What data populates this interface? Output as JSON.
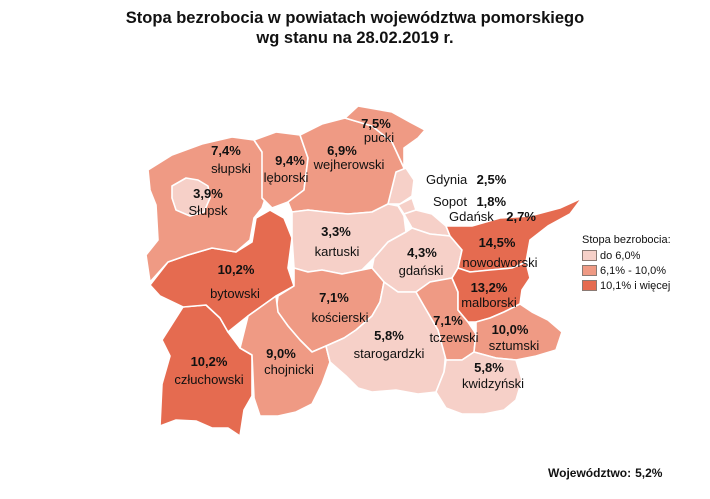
{
  "title_line1": "Stopa bezrobocia w powiatach województwa pomorskiego",
  "title_line2": "wg stanu na 28.02.2019 r.",
  "legend": {
    "title": "Stopa bezrobocia:",
    "items": [
      {
        "label": "do 6,0%",
        "color": "#f6d0c8"
      },
      {
        "label": "6,1% - 10,0%",
        "color": "#ef9a84"
      },
      {
        "label": "10,1% i więcej",
        "color": "#e56b50"
      }
    ]
  },
  "summary": {
    "label": "Województwo:",
    "value": "5,2%"
  },
  "regions": [
    {
      "id": "pucki",
      "name": "pucki",
      "value": "7,5%",
      "category": 1
    },
    {
      "id": "slupski",
      "name": "słupski",
      "value": "7,4%",
      "category": 1
    },
    {
      "id": "leborski",
      "name": "lęborski",
      "value": "9,4%",
      "category": 1
    },
    {
      "id": "wejherowski",
      "name": "wejherowski",
      "value": "6,9%",
      "category": 1
    },
    {
      "id": "slupsk",
      "name": "Słupsk",
      "value": "3,9%",
      "category": 0
    },
    {
      "id": "gdynia",
      "name": "Gdynia",
      "value": "2,5%",
      "category": 0
    },
    {
      "id": "sopot",
      "name": "Sopot",
      "value": "1,8%",
      "category": 0
    },
    {
      "id": "gdansk",
      "name": "Gdańsk",
      "value": "2,7%",
      "category": 0
    },
    {
      "id": "kartuski",
      "name": "kartuski",
      "value": "3,3%",
      "category": 0
    },
    {
      "id": "gdanski",
      "name": "gdański",
      "value": "4,3%",
      "category": 0
    },
    {
      "id": "nowodworski",
      "name": "nowodworski",
      "value": "14,5%",
      "category": 2
    },
    {
      "id": "bytowski",
      "name": "bytowski",
      "value": "10,2%",
      "category": 2
    },
    {
      "id": "koscierski",
      "name": "kościerski",
      "value": "7,1%",
      "category": 1
    },
    {
      "id": "malborski",
      "name": "malborski",
      "value": "13,2%",
      "category": 2
    },
    {
      "id": "tczewski",
      "name": "tczewski",
      "value": "7,1%",
      "category": 1
    },
    {
      "id": "starogardzki",
      "name": "starogardzki",
      "value": "5,8%",
      "category": 0
    },
    {
      "id": "sztumski",
      "name": "sztumski",
      "value": "10,0%",
      "category": 1
    },
    {
      "id": "czluchowski",
      "name": "człuchowski",
      "value": "10,2%",
      "category": 2
    },
    {
      "id": "chojnicki",
      "name": "chojnicki",
      "value": "9,0%",
      "category": 1
    },
    {
      "id": "kwidzynski",
      "name": "kwidzyński",
      "value": "5,8%",
      "category": 0
    }
  ]
}
